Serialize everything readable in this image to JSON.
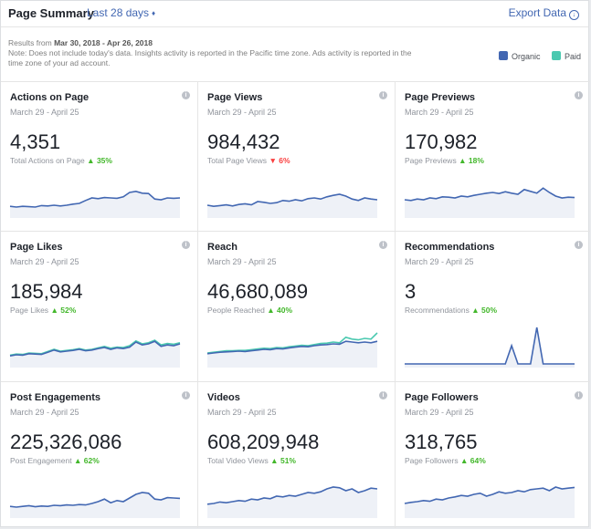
{
  "header": {
    "title": "Page Summary",
    "range": "Last 28 days",
    "export": "Export Data"
  },
  "notes": {
    "results_prefix": "Results from",
    "results_range": "Mar 30, 2018 - Apr 26, 2018",
    "line1": "Note: Does not include today's data. Insights activity is reported in the Pacific time zone. Ads activity is reported in the",
    "line2": "time zone of your ad account."
  },
  "legend": {
    "organic": "Organic",
    "paid": "Paid",
    "organic_color": "#4267b2",
    "paid_color": "#4bc9b0"
  },
  "cards": [
    {
      "title": "Actions on Page",
      "date": "March 29 - April 25",
      "value": "4,351",
      "sub": "Total Actions on Page",
      "pct": "35%",
      "dir": "up",
      "organic": [
        0.22,
        0.2,
        0.22,
        0.21,
        0.2,
        0.24,
        0.23,
        0.25,
        0.23,
        0.25,
        0.28,
        0.3,
        0.38,
        0.45,
        0.43,
        0.46,
        0.45,
        0.44,
        0.48,
        0.6,
        0.63,
        0.58,
        0.57,
        0.42,
        0.4,
        0.45,
        0.44,
        0.45
      ],
      "paid": null
    },
    {
      "title": "Page Views",
      "date": "March 29 - April 25",
      "value": "984,432",
      "sub": "Total Page Views",
      "pct": "6%",
      "dir": "down",
      "organic": [
        0.25,
        0.22,
        0.24,
        0.26,
        0.23,
        0.27,
        0.29,
        0.26,
        0.35,
        0.33,
        0.3,
        0.32,
        0.38,
        0.36,
        0.4,
        0.37,
        0.43,
        0.45,
        0.42,
        0.48,
        0.52,
        0.55,
        0.5,
        0.42,
        0.38,
        0.45,
        0.42,
        0.4
      ],
      "paid": null
    },
    {
      "title": "Page Previews",
      "date": "March 29 - April 25",
      "value": "170,982",
      "sub": "Page Previews",
      "pct": "18%",
      "dir": "up",
      "organic": [
        0.4,
        0.38,
        0.42,
        0.4,
        0.45,
        0.43,
        0.48,
        0.47,
        0.45,
        0.5,
        0.48,
        0.52,
        0.55,
        0.58,
        0.6,
        0.57,
        0.62,
        0.58,
        0.55,
        0.68,
        0.63,
        0.58,
        0.72,
        0.6,
        0.5,
        0.45,
        0.47,
        0.46
      ],
      "paid": null
    },
    {
      "title": "Page Likes",
      "date": "March 29 - April 25",
      "value": "185,984",
      "sub": "Page Likes",
      "pct": "52%",
      "dir": "up",
      "organic": [
        0.22,
        0.25,
        0.24,
        0.28,
        0.27,
        0.26,
        0.32,
        0.38,
        0.33,
        0.35,
        0.37,
        0.4,
        0.36,
        0.38,
        0.42,
        0.45,
        0.4,
        0.44,
        0.42,
        0.46,
        0.6,
        0.52,
        0.55,
        0.62,
        0.48,
        0.52,
        0.5,
        0.55
      ],
      "paid": [
        0.24,
        0.27,
        0.26,
        0.3,
        0.29,
        0.28,
        0.34,
        0.4,
        0.35,
        0.37,
        0.39,
        0.42,
        0.38,
        0.4,
        0.44,
        0.48,
        0.43,
        0.46,
        0.45,
        0.5,
        0.63,
        0.55,
        0.58,
        0.65,
        0.52,
        0.56,
        0.54,
        0.58
      ]
    },
    {
      "title": "Reach",
      "date": "March 29 - April 25",
      "value": "46,680,089",
      "sub": "People Reached",
      "pct": "40%",
      "dir": "up",
      "organic": [
        0.28,
        0.3,
        0.32,
        0.33,
        0.34,
        0.35,
        0.34,
        0.36,
        0.38,
        0.4,
        0.39,
        0.42,
        0.41,
        0.44,
        0.46,
        0.48,
        0.47,
        0.5,
        0.52,
        0.53,
        0.55,
        0.54,
        0.62,
        0.6,
        0.58,
        0.6,
        0.58,
        0.62
      ],
      "paid": [
        0.3,
        0.32,
        0.34,
        0.36,
        0.36,
        0.37,
        0.37,
        0.39,
        0.41,
        0.43,
        0.42,
        0.45,
        0.44,
        0.47,
        0.49,
        0.51,
        0.5,
        0.53,
        0.56,
        0.57,
        0.6,
        0.58,
        0.73,
        0.68,
        0.66,
        0.7,
        0.68,
        0.85
      ]
    },
    {
      "title": "Recommendations",
      "date": "March 29 - April 25",
      "value": "3",
      "sub": "Recommendations",
      "pct": "50%",
      "dir": "up",
      "organic": [
        0,
        0,
        0,
        0,
        0,
        0,
        0,
        0,
        0,
        0,
        0,
        0,
        0,
        0,
        0,
        0,
        0,
        0.5,
        0,
        0,
        0,
        1,
        0,
        0,
        0,
        0,
        0,
        0
      ],
      "paid": null
    },
    {
      "title": "Post Engagements",
      "date": "March 29 - April 25",
      "value": "225,326,086",
      "sub": "Post Engagement",
      "pct": "62%",
      "dir": "up",
      "organic": [
        0.22,
        0.2,
        0.22,
        0.24,
        0.21,
        0.23,
        0.22,
        0.25,
        0.24,
        0.26,
        0.25,
        0.27,
        0.26,
        0.3,
        0.35,
        0.42,
        0.32,
        0.38,
        0.35,
        0.45,
        0.55,
        0.6,
        0.58,
        0.42,
        0.4,
        0.46,
        0.45,
        0.44
      ],
      "paid": null
    },
    {
      "title": "Videos",
      "date": "March 29 - April 25",
      "value": "608,209,948",
      "sub": "Total Video Views",
      "pct": "51%",
      "dir": "up",
      "organic": [
        0.28,
        0.3,
        0.34,
        0.32,
        0.35,
        0.38,
        0.36,
        0.42,
        0.4,
        0.45,
        0.43,
        0.5,
        0.48,
        0.52,
        0.5,
        0.55,
        0.6,
        0.58,
        0.62,
        0.7,
        0.75,
        0.73,
        0.65,
        0.7,
        0.6,
        0.65,
        0.72,
        0.7
      ],
      "paid": null
    },
    {
      "title": "Page Followers",
      "date": "March 29 - April 25",
      "value": "318,765",
      "sub": "Page Followers",
      "pct": "64%",
      "dir": "up",
      "organic": [
        0.3,
        0.33,
        0.35,
        0.38,
        0.36,
        0.42,
        0.4,
        0.45,
        0.48,
        0.52,
        0.5,
        0.55,
        0.58,
        0.5,
        0.55,
        0.62,
        0.58,
        0.6,
        0.65,
        0.62,
        0.68,
        0.7,
        0.72,
        0.65,
        0.75,
        0.7,
        0.72,
        0.74
      ],
      "paid": null
    }
  ]
}
